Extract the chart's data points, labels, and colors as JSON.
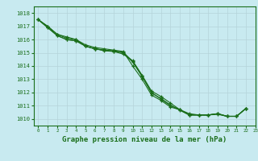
{
  "title": "Graphe pression niveau de la mer (hPa)",
  "bg_color": "#c8eaf0",
  "grid_color": "#b4d4da",
  "line_color": "#1a6e1a",
  "marker_color": "#1a6e1a",
  "xlim": [
    -0.5,
    23
  ],
  "ylim": [
    1009.5,
    1018.5
  ],
  "yticks": [
    1010,
    1011,
    1012,
    1013,
    1014,
    1015,
    1016,
    1017,
    1018
  ],
  "xticks": [
    0,
    1,
    2,
    3,
    4,
    5,
    6,
    7,
    8,
    9,
    10,
    11,
    12,
    13,
    14,
    15,
    16,
    17,
    18,
    19,
    20,
    21,
    22,
    23
  ],
  "series": [
    [
      1017.5,
      1017.0,
      1016.4,
      1016.1,
      1016.0,
      1015.5,
      1015.3,
      1015.2,
      1015.1,
      1014.9,
      1014.4,
      1013.3,
      1012.1,
      1011.7,
      1011.2,
      1010.7,
      1010.3,
      1010.3,
      1010.3,
      1010.4,
      1010.2,
      1010.2,
      1010.8
    ],
    [
      1017.5,
      1017.0,
      1016.4,
      1016.2,
      1016.0,
      1015.6,
      1015.4,
      1015.3,
      1015.2,
      1015.1,
      1014.0,
      1013.0,
      1011.8,
      1011.4,
      1010.9,
      1010.7,
      1010.4,
      1010.3,
      1010.3,
      1010.4,
      1010.2,
      1010.2,
      1010.8
    ],
    [
      1017.5,
      1016.9,
      1016.3,
      1016.0,
      1015.9,
      1015.5,
      1015.3,
      1015.15,
      1015.1,
      1015.0,
      1014.3,
      1013.2,
      1012.0,
      1011.5,
      1011.0,
      1010.7,
      1010.3,
      1010.3,
      1010.3,
      1010.35,
      1010.2,
      1010.2,
      1010.8
    ],
    [
      1017.5,
      1016.9,
      1016.3,
      1016.0,
      1015.9,
      1015.5,
      1015.3,
      1015.2,
      1015.15,
      1015.05,
      1014.35,
      1013.25,
      1011.95,
      1011.55,
      1011.05,
      1010.65,
      1010.3,
      1010.3,
      1010.3,
      1010.4,
      1010.2,
      1010.2,
      1010.8
    ]
  ]
}
